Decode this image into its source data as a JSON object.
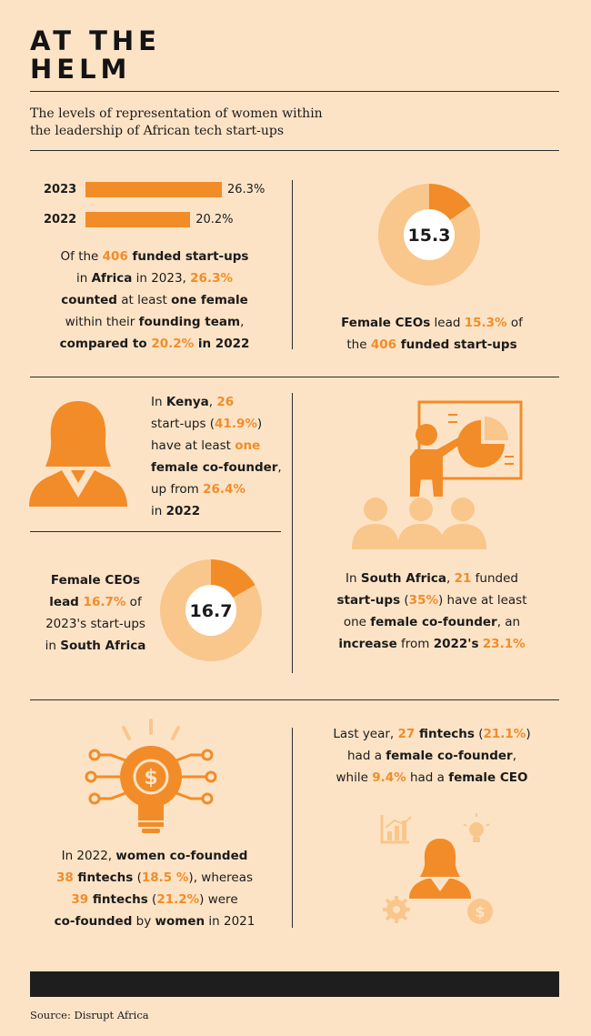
{
  "title": {
    "line1": "AT THE",
    "line2": "HELM"
  },
  "subtitle": {
    "line1": "The levels of representation of women within",
    "line2": "the leadership of African tech start-ups"
  },
  "colors": {
    "accent": "#f28c28",
    "light": "#f9c68c",
    "background": "#fde3c6",
    "dark": "#1e1e1e"
  },
  "chart_data": [
    {
      "type": "bar",
      "categories": [
        "2023",
        "2022"
      ],
      "values": [
        26.3,
        20.2
      ],
      "value_labels": [
        "26.3%",
        "20.2%"
      ]
    },
    {
      "type": "pie",
      "values": [
        15.3,
        84.7
      ],
      "center_label": "15.3"
    },
    {
      "type": "pie",
      "values": [
        16.7,
        83.3
      ],
      "center_label": "16.7"
    }
  ],
  "panels": {
    "bars_text": [
      [
        {
          "t": "Of the "
        },
        {
          "t": "406",
          "c": "orange"
        },
        {
          "t": " funded start-ups",
          "c": "b"
        }
      ],
      [
        {
          "t": "in "
        },
        {
          "t": "Africa",
          "c": "b"
        },
        {
          "t": " in 2023, "
        },
        {
          "t": "26.3%",
          "c": "orange"
        }
      ],
      [
        {
          "t": "counted",
          "c": "b"
        },
        {
          "t": " at least "
        },
        {
          "t": "one female",
          "c": "b"
        }
      ],
      [
        {
          "t": "within their "
        },
        {
          "t": "founding team",
          "c": "b"
        },
        {
          "t": ","
        }
      ],
      [
        {
          "t": "compared to ",
          "c": "b"
        },
        {
          "t": "20.2%",
          "c": "orange"
        },
        {
          "t": " in 2022",
          "c": "b"
        }
      ]
    ],
    "donut1_text": [
      [
        {
          "t": "Female CEOs",
          "c": "b"
        },
        {
          "t": " lead "
        },
        {
          "t": "15.3%",
          "c": "orange"
        },
        {
          "t": " of"
        }
      ],
      [
        {
          "t": "the "
        },
        {
          "t": "406",
          "c": "orange"
        },
        {
          "t": " funded start-ups",
          "c": "b"
        }
      ]
    ],
    "kenya_text": [
      [
        {
          "t": "In "
        },
        {
          "t": "Kenya",
          "c": "b"
        },
        {
          "t": ", "
        },
        {
          "t": "26",
          "c": "orange"
        }
      ],
      [
        {
          "t": "start-ups ("
        },
        {
          "t": "41.9%",
          "c": "orange"
        },
        {
          "t": ")"
        }
      ],
      [
        {
          "t": "have at least "
        },
        {
          "t": "one",
          "c": "orange"
        }
      ],
      [
        {
          "t": "female co-founder",
          "c": "b"
        },
        {
          "t": ","
        }
      ],
      [
        {
          "t": "up from "
        },
        {
          "t": "26.4%",
          "c": "orange"
        }
      ],
      [
        {
          "t": "in "
        },
        {
          "t": "2022",
          "c": "b"
        }
      ]
    ],
    "donut2_text": [
      [
        {
          "t": "Female CEOs",
          "c": "b"
        }
      ],
      [
        {
          "t": "lead ",
          "c": "b"
        },
        {
          "t": "16.7%",
          "c": "orange"
        },
        {
          "t": " of"
        }
      ],
      [
        {
          "t": "2023's start-ups"
        }
      ],
      [
        {
          "t": "in "
        },
        {
          "t": "South Africa",
          "c": "b"
        }
      ]
    ],
    "sa_text": [
      [
        {
          "t": "In "
        },
        {
          "t": "South Africa",
          "c": "b"
        },
        {
          "t": ", "
        },
        {
          "t": "21",
          "c": "orange"
        },
        {
          "t": " funded"
        }
      ],
      [
        {
          "t": "start-ups",
          "c": "b"
        },
        {
          "t": " ("
        },
        {
          "t": "35%",
          "c": "orange"
        },
        {
          "t": ") have at least"
        }
      ],
      [
        {
          "t": "one "
        },
        {
          "t": "female co-founder",
          "c": "b"
        },
        {
          "t": ", an"
        }
      ],
      [
        {
          "t": "increase",
          "c": "b"
        },
        {
          "t": " from "
        },
        {
          "t": "2022's",
          "c": "b"
        },
        {
          "t": " "
        },
        {
          "t": "23.1%",
          "c": "orange"
        }
      ]
    ],
    "fintech2022_text": [
      [
        {
          "t": "In 2022, "
        },
        {
          "t": "women co-founded",
          "c": "b"
        }
      ],
      [
        {
          "t": "38",
          "c": "orange"
        },
        {
          "t": " fintechs",
          "c": "b"
        },
        {
          "t": " ("
        },
        {
          "t": "18.5 %",
          "c": "orange"
        },
        {
          "t": "), whereas"
        }
      ],
      [
        {
          "t": "39",
          "c": "orange"
        },
        {
          "t": " fintechs",
          "c": "b"
        },
        {
          "t": " ("
        },
        {
          "t": "21.2%",
          "c": "orange"
        },
        {
          "t": ") were"
        }
      ],
      [
        {
          "t": "co-founded",
          "c": "b"
        },
        {
          "t": " by "
        },
        {
          "t": "women",
          "c": "b"
        },
        {
          "t": " in 2021"
        }
      ]
    ],
    "lastyear_text": [
      [
        {
          "t": "Last year, "
        },
        {
          "t": "27",
          "c": "orange"
        },
        {
          "t": " fintechs",
          "c": "b"
        },
        {
          "t": " ("
        },
        {
          "t": "21.1%",
          "c": "orange"
        },
        {
          "t": ")"
        }
      ],
      [
        {
          "t": "had a "
        },
        {
          "t": "female co-founder",
          "c": "b"
        },
        {
          "t": ","
        }
      ],
      [
        {
          "t": "while "
        },
        {
          "t": "9.4%",
          "c": "orange"
        },
        {
          "t": " had a "
        },
        {
          "t": "female CEO",
          "c": "b"
        }
      ]
    ]
  },
  "source": "Source: Disrupt Africa"
}
